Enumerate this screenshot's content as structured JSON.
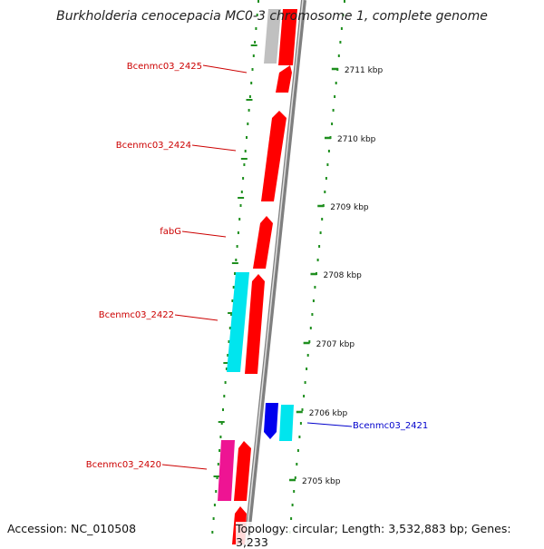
{
  "title": "Burkholderia cenocepacia MC0-3 chromosome 1, complete genome",
  "footer": {
    "accession": "Accession: NC_010508",
    "topology": "Topology: circular; Length: 3,532,883 bp; Genes: 3,233"
  },
  "colors": {
    "forward_gene": "#ff0000",
    "reverse_gene": "#00e5ee",
    "pseudo_gene": "#c0c0c0",
    "rna_gene": "#0000ee",
    "magenta_gene": "#ee1493",
    "tick_mark": "#1f8f1f",
    "label_red": "#cc0000",
    "label_blue": "#0000cc",
    "backbone": "#7f7f7f"
  },
  "kbp_ticks": [
    {
      "label": "2711 kbp"
    },
    {
      "label": "2710 kbp"
    },
    {
      "label": "2709 kbp"
    },
    {
      "label": "2708 kbp"
    },
    {
      "label": "2707 kbp"
    },
    {
      "label": "2706 kbp"
    },
    {
      "label": "2705 kbp"
    }
  ],
  "gene_labels": [
    {
      "name": "Bcenmc03_2425",
      "color": "#cc0000"
    },
    {
      "name": "Bcenmc03_2424",
      "color": "#cc0000"
    },
    {
      "name": "fabG",
      "color": "#cc0000"
    },
    {
      "name": "Bcenmc03_2422",
      "color": "#cc0000"
    },
    {
      "name": "Bcenmc03_2421",
      "color": "#0000cc"
    },
    {
      "name": "Bcenmc03_2420",
      "color": "#cc0000"
    }
  ]
}
